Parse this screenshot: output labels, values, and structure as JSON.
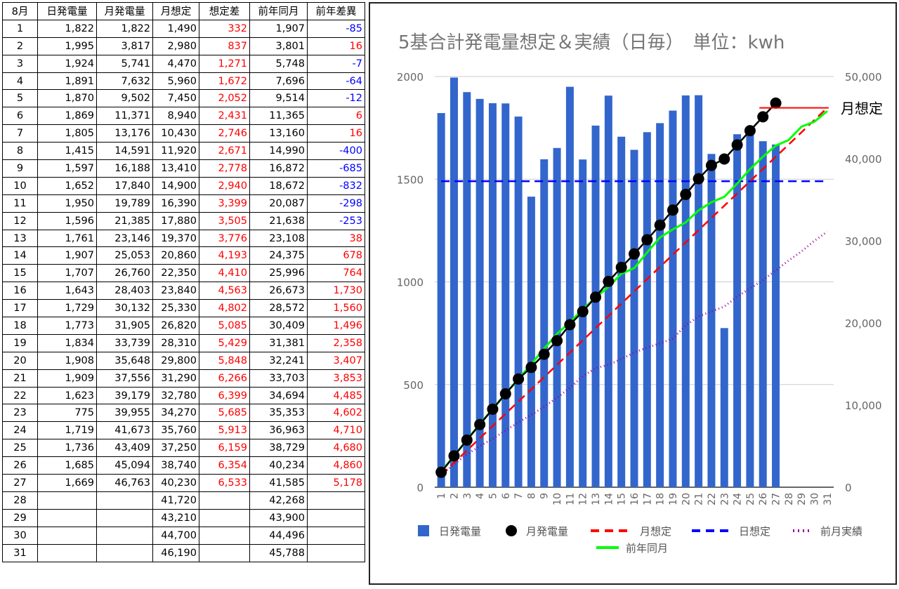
{
  "table": {
    "headers": [
      "8月",
      "日発電量",
      "月発電量",
      "月想定",
      "想定差",
      "前年同月",
      "前年差異"
    ],
    "rows": [
      {
        "day": "1",
        "daily": "1,822",
        "monthly": "1,822",
        "assumed": "1,490",
        "diff": "332",
        "prev": "1,907",
        "prevdiff": "-85"
      },
      {
        "day": "2",
        "daily": "1,995",
        "monthly": "3,817",
        "assumed": "2,980",
        "diff": "837",
        "prev": "3,801",
        "prevdiff": "16"
      },
      {
        "day": "3",
        "daily": "1,924",
        "monthly": "5,741",
        "assumed": "4,470",
        "diff": "1,271",
        "prev": "5,748",
        "prevdiff": "-7"
      },
      {
        "day": "4",
        "daily": "1,891",
        "monthly": "7,632",
        "assumed": "5,960",
        "diff": "1,672",
        "prev": "7,696",
        "prevdiff": "-64"
      },
      {
        "day": "5",
        "daily": "1,870",
        "monthly": "9,502",
        "assumed": "7,450",
        "diff": "2,052",
        "prev": "9,514",
        "prevdiff": "-12"
      },
      {
        "day": "6",
        "daily": "1,869",
        "monthly": "11,371",
        "assumed": "8,940",
        "diff": "2,431",
        "prev": "11,365",
        "prevdiff": "6"
      },
      {
        "day": "7",
        "daily": "1,805",
        "monthly": "13,176",
        "assumed": "10,430",
        "diff": "2,746",
        "prev": "13,160",
        "prevdiff": "16"
      },
      {
        "day": "8",
        "daily": "1,415",
        "monthly": "14,591",
        "assumed": "11,920",
        "diff": "2,671",
        "prev": "14,990",
        "prevdiff": "-400"
      },
      {
        "day": "9",
        "daily": "1,597",
        "monthly": "16,188",
        "assumed": "13,410",
        "diff": "2,778",
        "prev": "16,872",
        "prevdiff": "-685"
      },
      {
        "day": "10",
        "daily": "1,652",
        "monthly": "17,840",
        "assumed": "14,900",
        "diff": "2,940",
        "prev": "18,672",
        "prevdiff": "-832"
      },
      {
        "day": "11",
        "daily": "1,950",
        "monthly": "19,789",
        "assumed": "16,390",
        "diff": "3,399",
        "prev": "20,087",
        "prevdiff": "-298"
      },
      {
        "day": "12",
        "daily": "1,596",
        "monthly": "21,385",
        "assumed": "17,880",
        "diff": "3,505",
        "prev": "21,638",
        "prevdiff": "-253"
      },
      {
        "day": "13",
        "daily": "1,761",
        "monthly": "23,146",
        "assumed": "19,370",
        "diff": "3,776",
        "prev": "23,108",
        "prevdiff": "38"
      },
      {
        "day": "14",
        "daily": "1,907",
        "monthly": "25,053",
        "assumed": "20,860",
        "diff": "4,193",
        "prev": "24,375",
        "prevdiff": "678"
      },
      {
        "day": "15",
        "daily": "1,707",
        "monthly": "26,760",
        "assumed": "22,350",
        "diff": "4,410",
        "prev": "25,996",
        "prevdiff": "764"
      },
      {
        "day": "16",
        "daily": "1,643",
        "monthly": "28,403",
        "assumed": "23,840",
        "diff": "4,563",
        "prev": "26,673",
        "prevdiff": "1,730"
      },
      {
        "day": "17",
        "daily": "1,729",
        "monthly": "30,132",
        "assumed": "25,330",
        "diff": "4,802",
        "prev": "28,572",
        "prevdiff": "1,560"
      },
      {
        "day": "18",
        "daily": "1,773",
        "monthly": "31,905",
        "assumed": "26,820",
        "diff": "5,085",
        "prev": "30,409",
        "prevdiff": "1,496"
      },
      {
        "day": "19",
        "daily": "1,834",
        "monthly": "33,739",
        "assumed": "28,310",
        "diff": "5,429",
        "prev": "31,381",
        "prevdiff": "2,358"
      },
      {
        "day": "20",
        "daily": "1,908",
        "monthly": "35,648",
        "assumed": "29,800",
        "diff": "5,848",
        "prev": "32,241",
        "prevdiff": "3,407"
      },
      {
        "day": "21",
        "daily": "1,909",
        "monthly": "37,556",
        "assumed": "31,290",
        "diff": "6,266",
        "prev": "33,703",
        "prevdiff": "3,853"
      },
      {
        "day": "22",
        "daily": "1,623",
        "monthly": "39,179",
        "assumed": "32,780",
        "diff": "6,399",
        "prev": "34,694",
        "prevdiff": "4,485"
      },
      {
        "day": "23",
        "daily": "775",
        "monthly": "39,955",
        "assumed": "34,270",
        "diff": "5,685",
        "prev": "35,353",
        "prevdiff": "4,602"
      },
      {
        "day": "24",
        "daily": "1,719",
        "monthly": "41,673",
        "assumed": "35,760",
        "diff": "5,913",
        "prev": "36,963",
        "prevdiff": "4,710"
      },
      {
        "day": "25",
        "daily": "1,736",
        "monthly": "43,409",
        "assumed": "37,250",
        "diff": "6,159",
        "prev": "38,729",
        "prevdiff": "4,680"
      },
      {
        "day": "26",
        "daily": "1,685",
        "monthly": "45,094",
        "assumed": "38,740",
        "diff": "6,354",
        "prev": "40,234",
        "prevdiff": "4,860"
      },
      {
        "day": "27",
        "daily": "1,669",
        "monthly": "46,763",
        "assumed": "40,230",
        "diff": "6,533",
        "prev": "41,585",
        "prevdiff": "5,178"
      },
      {
        "day": "28",
        "daily": "",
        "monthly": "",
        "assumed": "41,720",
        "diff": "",
        "prev": "42,268",
        "prevdiff": ""
      },
      {
        "day": "29",
        "daily": "",
        "monthly": "",
        "assumed": "43,210",
        "diff": "",
        "prev": "43,900",
        "prevdiff": ""
      },
      {
        "day": "30",
        "daily": "",
        "monthly": "",
        "assumed": "44,700",
        "diff": "",
        "prev": "44,496",
        "prevdiff": ""
      },
      {
        "day": "31",
        "daily": "",
        "monthly": "",
        "assumed": "46,190",
        "diff": "",
        "prev": "45,788",
        "prevdiff": ""
      }
    ]
  },
  "chart_data": {
    "type": "bar",
    "title": "5基合計発電量想定＆実績（日毎）　単位：kwh",
    "categories": [
      "1",
      "2",
      "3",
      "4",
      "5",
      "6",
      "7",
      "8",
      "9",
      "10",
      "11",
      "12",
      "13",
      "14",
      "15",
      "16",
      "17",
      "18",
      "19",
      "20",
      "21",
      "22",
      "23",
      "24",
      "25",
      "26",
      "27",
      "28",
      "29",
      "30",
      "31"
    ],
    "left_axis": {
      "ylim": [
        0,
        2000
      ],
      "ticks": [
        "0",
        "500",
        "1000",
        "1500",
        "2000"
      ],
      "tick_values": [
        0,
        500,
        1000,
        1500,
        2000
      ]
    },
    "right_axis": {
      "ylim": [
        0,
        50000
      ],
      "ticks": [
        "0",
        "10,000",
        "20,000",
        "30,000",
        "40,000",
        "50,000"
      ],
      "tick_values": [
        0,
        10000,
        20000,
        30000,
        40000,
        50000
      ]
    },
    "series": [
      {
        "name": "日発電量",
        "kind": "bar",
        "axis": "left",
        "color": "#3366cc",
        "values": [
          1822,
          1995,
          1924,
          1891,
          1870,
          1869,
          1805,
          1415,
          1597,
          1652,
          1950,
          1596,
          1761,
          1907,
          1707,
          1643,
          1729,
          1773,
          1834,
          1908,
          1909,
          1623,
          775,
          1719,
          1736,
          1685,
          1669,
          null,
          null,
          null,
          null
        ]
      },
      {
        "name": "月発電量",
        "kind": "line-marker",
        "axis": "right",
        "color": "#000000",
        "values": [
          1822,
          3817,
          5741,
          7632,
          9502,
          11371,
          13176,
          14591,
          16188,
          17840,
          19789,
          21385,
          23146,
          25053,
          26760,
          28403,
          30132,
          31905,
          33739,
          35648,
          37556,
          39179,
          39955,
          41673,
          43409,
          45094,
          46763,
          null,
          null,
          null,
          null
        ]
      },
      {
        "name": "月想定",
        "kind": "dashed-line",
        "axis": "right",
        "color": "#ff0000",
        "values": [
          1490,
          2980,
          4470,
          5960,
          7450,
          8940,
          10430,
          11920,
          13410,
          14900,
          16390,
          17880,
          19370,
          20860,
          22350,
          23840,
          25330,
          26820,
          28310,
          29800,
          31290,
          32780,
          34270,
          35760,
          37250,
          38740,
          40230,
          41720,
          43210,
          44700,
          46190
        ]
      },
      {
        "name": "日想定",
        "kind": "dashed-line",
        "axis": "left",
        "color": "#0000ff",
        "values": [
          1490,
          1490,
          1490,
          1490,
          1490,
          1490,
          1490,
          1490,
          1490,
          1490,
          1490,
          1490,
          1490,
          1490,
          1490,
          1490,
          1490,
          1490,
          1490,
          1490,
          1490,
          1490,
          1490,
          1490,
          1490,
          1490,
          1490,
          1490,
          1490,
          1490,
          1490
        ]
      },
      {
        "name": "前月実績",
        "kind": "dotted-line",
        "axis": "right",
        "color": "#990099",
        "values": [
          1500,
          2800,
          4000,
          5000,
          5900,
          6900,
          7900,
          8800,
          9800,
          10900,
          12100,
          13500,
          14500,
          14900,
          15600,
          16400,
          17000,
          17500,
          18100,
          19700,
          20800,
          21400,
          22000,
          23200,
          24200,
          25200,
          26400,
          27600,
          28700,
          30000,
          31100
        ]
      },
      {
        "name": "前年同月",
        "kind": "line",
        "axis": "right",
        "color": "#00ff00",
        "values": [
          1907,
          3801,
          5748,
          7696,
          9514,
          11365,
          13160,
          14990,
          16872,
          18672,
          20087,
          21638,
          23108,
          24375,
          25996,
          26673,
          28572,
          30409,
          31381,
          32241,
          33703,
          34694,
          35353,
          36963,
          38729,
          40234,
          41585,
          42268,
          43900,
          44496,
          45788
        ]
      }
    ],
    "annotation": "月想定",
    "annotation_value": 46190,
    "grid": true,
    "legend_placement": "bottom"
  }
}
